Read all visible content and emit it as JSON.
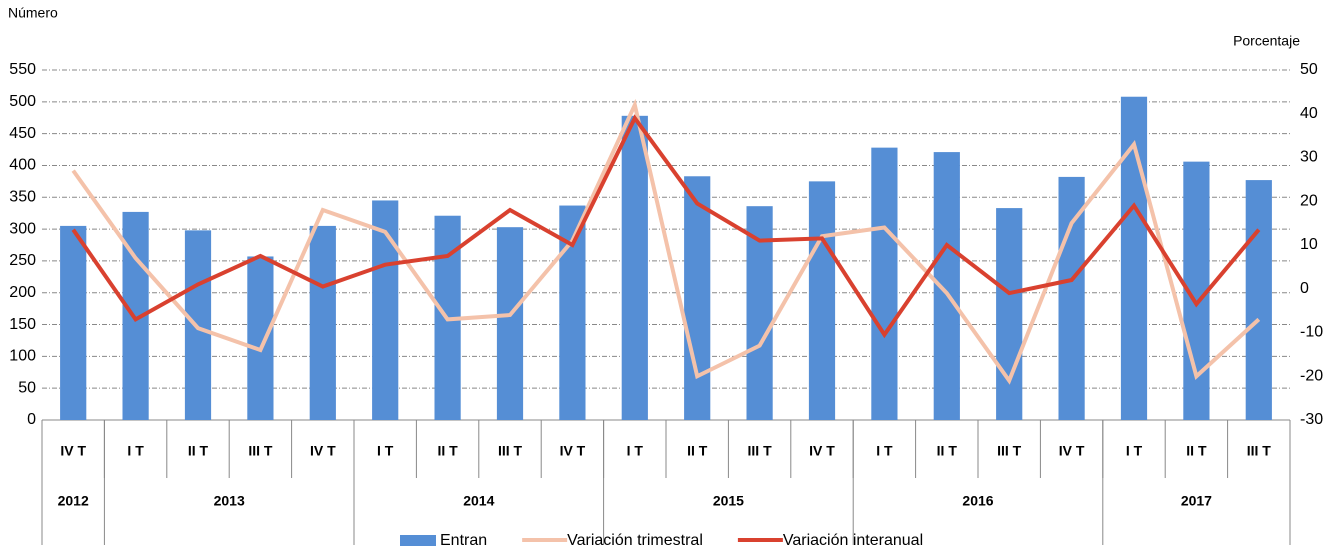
{
  "chart_data": {
    "type": "bar_line",
    "y_label": "Número",
    "y2_label": "Porcentaje",
    "categories": [
      "IV T",
      "I T",
      "II T",
      "III T",
      "IV T",
      "I T",
      "II T",
      "III T",
      "IV T",
      "I T",
      "II T",
      "III T",
      "IV T",
      "I T",
      "II T",
      "III T",
      "IV T",
      "I T",
      "II T",
      "III T"
    ],
    "year_groups": [
      {
        "label": "2012",
        "count": 1
      },
      {
        "label": "2013",
        "count": 4
      },
      {
        "label": "2014",
        "count": 4
      },
      {
        "label": "2015",
        "count": 4
      },
      {
        "label": "2016",
        "count": 4
      },
      {
        "label": "2017",
        "count": 3
      }
    ],
    "series": [
      {
        "name": "Entran",
        "type": "bar",
        "color": "#558ed5",
        "values": [
          305,
          327,
          298,
          257,
          305,
          345,
          321,
          303,
          337,
          478,
          383,
          336,
          375,
          428,
          421,
          333,
          382,
          508,
          406,
          377
        ]
      },
      {
        "name": "Variación trimestral",
        "type": "line",
        "axis": "y2",
        "color": "#f4c2aa",
        "values": [
          27,
          7,
          -9,
          -14,
          18,
          13,
          -7,
          -6,
          11,
          42,
          -20,
          -13,
          12,
          14,
          -1,
          -21,
          15,
          33,
          -20,
          -7
        ]
      },
      {
        "name": "Variación interanual",
        "type": "line",
        "axis": "y2",
        "color": "#d9412f",
        "values": [
          13.5,
          -7,
          1,
          7.5,
          0.5,
          5.5,
          7.5,
          18,
          10,
          39,
          19.5,
          11,
          11.5,
          -10.5,
          10,
          -1,
          2,
          19,
          -3.5,
          13.5
        ]
      }
    ],
    "ylim": [
      0,
      550
    ],
    "yticks": [
      0,
      50,
      100,
      150,
      200,
      250,
      300,
      350,
      400,
      450,
      500,
      550
    ],
    "y2lim": [
      -30,
      50
    ],
    "y2ticks": [
      -30,
      -20,
      -10,
      0,
      10,
      20,
      30,
      40,
      50
    ],
    "grid": true
  }
}
